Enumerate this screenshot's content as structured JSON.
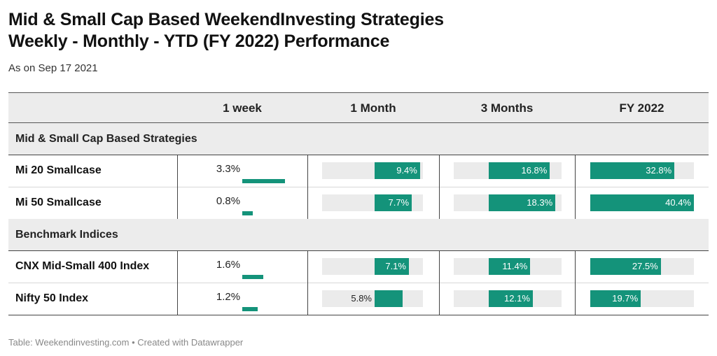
{
  "title": {
    "line1": "Mid & Small Cap Based WeekendInvesting Strategies",
    "line2": "Weekly - Monthly - YTD (FY 2022) Performance"
  },
  "subtitle": "As on Sep 17 2021",
  "footer": "Table: Weekendinvesting.com • Created with Datawrapper",
  "colors": {
    "bar": "#14937a",
    "track": "#ebebeb",
    "group_bg": "#ececec"
  },
  "chart_data": {
    "type": "table",
    "columns": [
      "",
      "1 week",
      "1 Month",
      "3 Months",
      "FY 2022"
    ],
    "groups": [
      {
        "name": "Mid & Small Cap Based Strategies",
        "rows": [
          {
            "name": "Mi 20 Smallcase",
            "week": 3.3,
            "month": 9.4,
            "three_months": 16.8,
            "fy2022": 32.8
          },
          {
            "name": "Mi 50 Smallcase",
            "week": 0.8,
            "month": 7.7,
            "three_months": 18.3,
            "fy2022": 40.4
          }
        ]
      },
      {
        "name": "Benchmark Indices",
        "rows": [
          {
            "name": "CNX Mid-Small 400 Index",
            "week": 1.6,
            "month": 7.1,
            "three_months": 11.4,
            "fy2022": 27.5
          },
          {
            "name": "Nifty 50 Index",
            "week": 1.2,
            "month": 5.8,
            "three_months": 12.1,
            "fy2022": 19.7
          }
        ]
      }
    ],
    "value_suffix": "%"
  }
}
